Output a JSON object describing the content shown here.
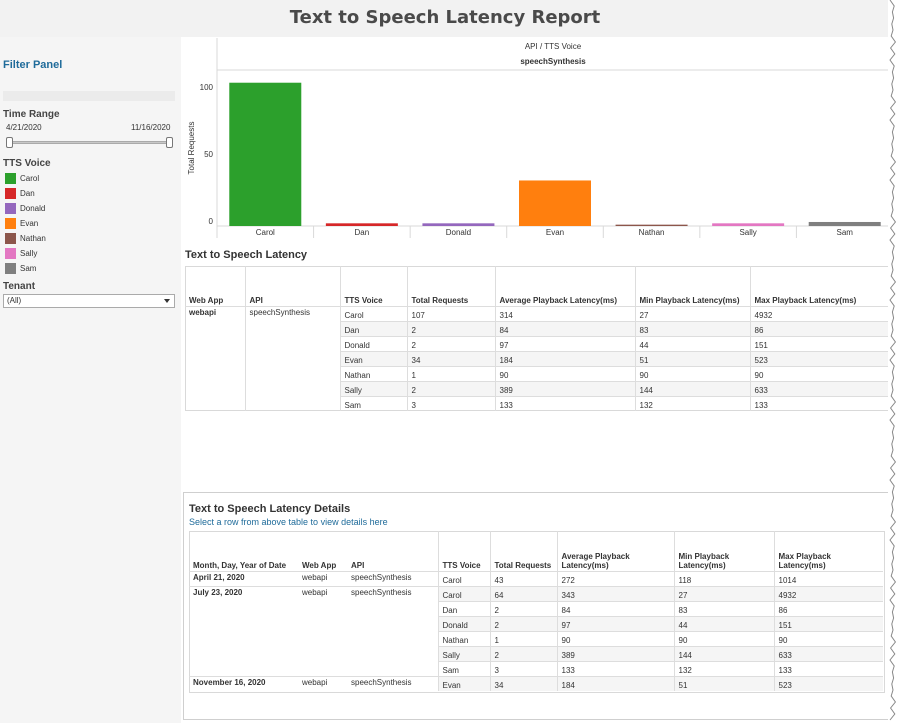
{
  "title": "Text to Speech Latency Report",
  "sidebar": {
    "filter_panel": "Filter Panel",
    "time_range_label": "Time Range",
    "range_start": "4/21/2020",
    "range_end": "11/16/2020",
    "tts_voice_label": "TTS Voice",
    "voices": [
      {
        "name": "Carol",
        "color": "#2ca02c"
      },
      {
        "name": "Dan",
        "color": "#d62728"
      },
      {
        "name": "Donald",
        "color": "#9467bd"
      },
      {
        "name": "Evan",
        "color": "#ff7f0e"
      },
      {
        "name": "Nathan",
        "color": "#8c564b"
      },
      {
        "name": "Sally",
        "color": "#e377c2"
      },
      {
        "name": "Sam",
        "color": "#7f7f7f"
      }
    ],
    "tenant_label": "Tenant",
    "tenant_value": "(All)"
  },
  "chart_data": {
    "type": "bar",
    "header_path": "API  /  TTS Voice",
    "group_label": "speechSynthesis",
    "ylabel": "Total Requests",
    "ylim": [
      0,
      115
    ],
    "yticks": [
      0,
      50,
      100
    ],
    "categories": [
      "Carol",
      "Dan",
      "Donald",
      "Evan",
      "Nathan",
      "Sally",
      "Sam"
    ],
    "values": [
      107,
      2,
      2,
      34,
      1,
      2,
      3
    ],
    "colors": [
      "#2ca02c",
      "#d62728",
      "#9467bd",
      "#ff7f0e",
      "#8c564b",
      "#e377c2",
      "#7f7f7f"
    ]
  },
  "latency": {
    "title": "Text to Speech Latency",
    "headers": [
      "Web App",
      "API",
      "TTS Voice",
      "Total Requests",
      "Average Playback Latency(ms)",
      "Min Playback Latency(ms)",
      "Max Playback Latency(ms)"
    ],
    "web_app": "webapi",
    "api": "speechSynthesis",
    "rows": [
      {
        "voice": "Carol",
        "total": "107",
        "avg": "314",
        "min": "27",
        "max": "4932"
      },
      {
        "voice": "Dan",
        "total": "2",
        "avg": "84",
        "min": "83",
        "max": "86"
      },
      {
        "voice": "Donald",
        "total": "2",
        "avg": "97",
        "min": "44",
        "max": "151"
      },
      {
        "voice": "Evan",
        "total": "34",
        "avg": "184",
        "min": "51",
        "max": "523"
      },
      {
        "voice": "Nathan",
        "total": "1",
        "avg": "90",
        "min": "90",
        "max": "90"
      },
      {
        "voice": "Sally",
        "total": "2",
        "avg": "389",
        "min": "144",
        "max": "633"
      },
      {
        "voice": "Sam",
        "total": "3",
        "avg": "133",
        "min": "132",
        "max": "133"
      }
    ]
  },
  "details": {
    "title": "Text to Speech Latency Details",
    "subtitle": "Select a row from above table to view details here",
    "headers": [
      "Month, Day, Year of Date",
      "Web App",
      "API",
      "TTS Voice",
      "Total Requests",
      "Average Playback Latency(ms)",
      "Min Playback Latency(ms)",
      "Max Playback Latency(ms)"
    ],
    "rows": [
      {
        "date": "April 21, 2020",
        "web_app": "webapi",
        "api": "speechSynthesis",
        "voice": "Carol",
        "total": "43",
        "avg": "272",
        "min": "118",
        "max": "1014"
      },
      {
        "date": "July 23, 2020",
        "web_app": "webapi",
        "api": "speechSynthesis",
        "voice": "Carol",
        "total": "64",
        "avg": "343",
        "min": "27",
        "max": "4932"
      },
      {
        "date": "",
        "web_app": "",
        "api": "",
        "voice": "Dan",
        "total": "2",
        "avg": "84",
        "min": "83",
        "max": "86"
      },
      {
        "date": "",
        "web_app": "",
        "api": "",
        "voice": "Donald",
        "total": "2",
        "avg": "97",
        "min": "44",
        "max": "151"
      },
      {
        "date": "",
        "web_app": "",
        "api": "",
        "voice": "Nathan",
        "total": "1",
        "avg": "90",
        "min": "90",
        "max": "90"
      },
      {
        "date": "",
        "web_app": "",
        "api": "",
        "voice": "Sally",
        "total": "2",
        "avg": "389",
        "min": "144",
        "max": "633"
      },
      {
        "date": "",
        "web_app": "",
        "api": "",
        "voice": "Sam",
        "total": "3",
        "avg": "133",
        "min": "132",
        "max": "133"
      },
      {
        "date": "November 16, 2020",
        "web_app": "webapi",
        "api": "speechSynthesis",
        "voice": "Evan",
        "total": "34",
        "avg": "184",
        "min": "51",
        "max": "523"
      }
    ]
  }
}
